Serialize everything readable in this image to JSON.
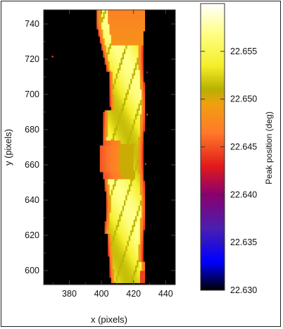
{
  "chart_data": [
    {
      "type": "heatmap",
      "xlabel": "x (pixels)",
      "ylabel": "y (pixels)",
      "xlim": [
        364,
        446
      ],
      "ylim": [
        592,
        748
      ],
      "x_ticks": [
        380,
        400,
        420,
        440
      ],
      "y_ticks": [
        600,
        620,
        640,
        660,
        680,
        700,
        720,
        740
      ],
      "background": "#000000",
      "description_values": {
        "band_x_range": [
          399,
          426
        ],
        "edge_peak_range": [
          22.645,
          22.65
        ],
        "interior_peak_range": [
          22.651,
          22.657
        ]
      }
    },
    {
      "type": "colorbar",
      "label": "Peak position (deg)",
      "range": [
        22.63,
        22.66
      ],
      "ticks": [
        "22.630",
        "22.635",
        "22.640",
        "22.645",
        "22.650",
        "22.655"
      ],
      "colormap": [
        {
          "value": 22.63,
          "color": "#000000"
        },
        {
          "value": 22.633,
          "color": "#0000ff"
        },
        {
          "value": 22.6365,
          "color": "#4a1fb0"
        },
        {
          "value": 22.64,
          "color": "#8a0070"
        },
        {
          "value": 22.643,
          "color": "#e21a1a"
        },
        {
          "value": 22.6465,
          "color": "#ff7a2a"
        },
        {
          "value": 22.6495,
          "color": "#f0a010"
        },
        {
          "value": 22.651,
          "color": "#b8b000"
        },
        {
          "value": 22.6535,
          "color": "#f5ee2a"
        },
        {
          "value": 22.657,
          "color": "#ffff8a"
        },
        {
          "value": 22.66,
          "color": "#ffffff"
        }
      ]
    }
  ]
}
